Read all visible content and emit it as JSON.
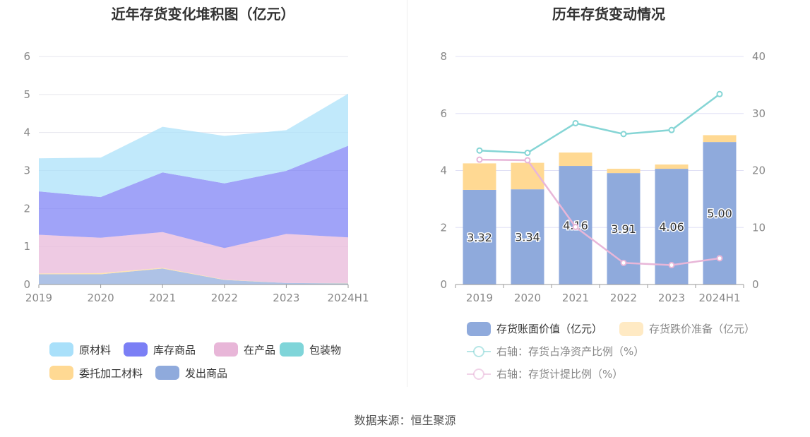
{
  "source": "数据来源：恒生聚源",
  "chart_data": [
    {
      "type": "area",
      "stacked": true,
      "title": "近年存货变化堆积图（亿元）",
      "categories": [
        "2019",
        "2020",
        "2021",
        "2022",
        "2023",
        "2024H1"
      ],
      "ylim": [
        0,
        6
      ],
      "yticks": [
        "0",
        "1",
        "2",
        "3",
        "4",
        "5",
        "6"
      ],
      "grid": true,
      "legend_position": "bottom",
      "series": [
        {
          "name": "发出商品",
          "color": "#8faadc",
          "values": [
            0.27,
            0.27,
            0.42,
            0.12,
            0.04,
            0.03
          ]
        },
        {
          "name": "委托加工材料",
          "color": "#ffd993",
          "values": [
            0.02,
            0.03,
            0.02,
            0.01,
            0.0,
            0.01
          ]
        },
        {
          "name": "包装物",
          "color": "#7fd5d9",
          "values": [
            0.0,
            0.0,
            0.0,
            0.0,
            0.0,
            0.0
          ]
        },
        {
          "name": "在产品",
          "color": "#e8b6d8",
          "values": [
            1.02,
            0.93,
            0.94,
            0.83,
            1.29,
            1.2
          ]
        },
        {
          "name": "库存商品",
          "color": "#7b7ff5",
          "values": [
            1.14,
            1.07,
            1.57,
            1.7,
            1.66,
            2.41
          ]
        },
        {
          "name": "原材料",
          "color": "#a9e0fa",
          "values": [
            0.87,
            1.04,
            1.2,
            1.25,
            1.07,
            1.37
          ]
        }
      ],
      "legend_order": [
        "原材料",
        "库存商品",
        "在产品",
        "包装物",
        "委托加工材料",
        "发出商品"
      ]
    },
    {
      "type": "bar",
      "stacked": true,
      "title": "历年存货变动情况",
      "categories": [
        "2019",
        "2020",
        "2021",
        "2022",
        "2023",
        "2024H1"
      ],
      "ylim": [
        0,
        8
      ],
      "yticks": [
        "0",
        "2",
        "4",
        "6",
        "8"
      ],
      "y2lim": [
        0,
        40
      ],
      "y2ticks": [
        "0",
        "10",
        "20",
        "30",
        "40"
      ],
      "grid": true,
      "legend_position": "bottom",
      "series": [
        {
          "name": "存货账面价值（亿元）",
          "color": "#8faadc",
          "values": [
            3.32,
            3.34,
            4.16,
            3.91,
            4.06,
            5.0
          ],
          "labels": [
            "3.32",
            "3.34",
            "4.16",
            "3.91",
            "4.06",
            "5.00"
          ]
        },
        {
          "name": "存货跌价准备（亿元）",
          "color": "#ffd993",
          "values": [
            0.93,
            0.93,
            0.47,
            0.15,
            0.15,
            0.24
          ]
        }
      ],
      "line_series": [
        {
          "name": "右轴：存货占净资产比例（%）",
          "color": "#85d5d5",
          "values": [
            23.5,
            23.1,
            28.3,
            26.4,
            27.1,
            33.4
          ]
        },
        {
          "name": "右轴：存货计提比例（%）",
          "color": "#e8b6d8",
          "values": [
            21.9,
            21.8,
            10.1,
            3.8,
            3.4,
            4.6
          ]
        }
      ]
    }
  ]
}
